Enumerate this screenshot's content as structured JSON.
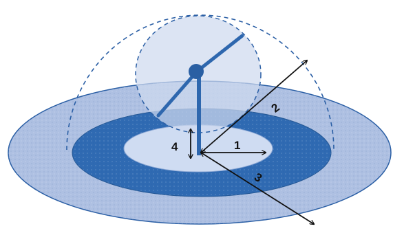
{
  "diagram": {
    "labels": {
      "one": "1",
      "two": "2",
      "three": "3",
      "four": "4"
    },
    "colors": {
      "outer_zone": "#aec0e2",
      "middle_zone": "#2f6ab2",
      "inner_zone": "#cfdcf2",
      "hub_dome": "#cfd9ee",
      "turbine": "#2e67ae",
      "dashed_outline": "#2b5fa5",
      "arrows": "#111111"
    }
  }
}
